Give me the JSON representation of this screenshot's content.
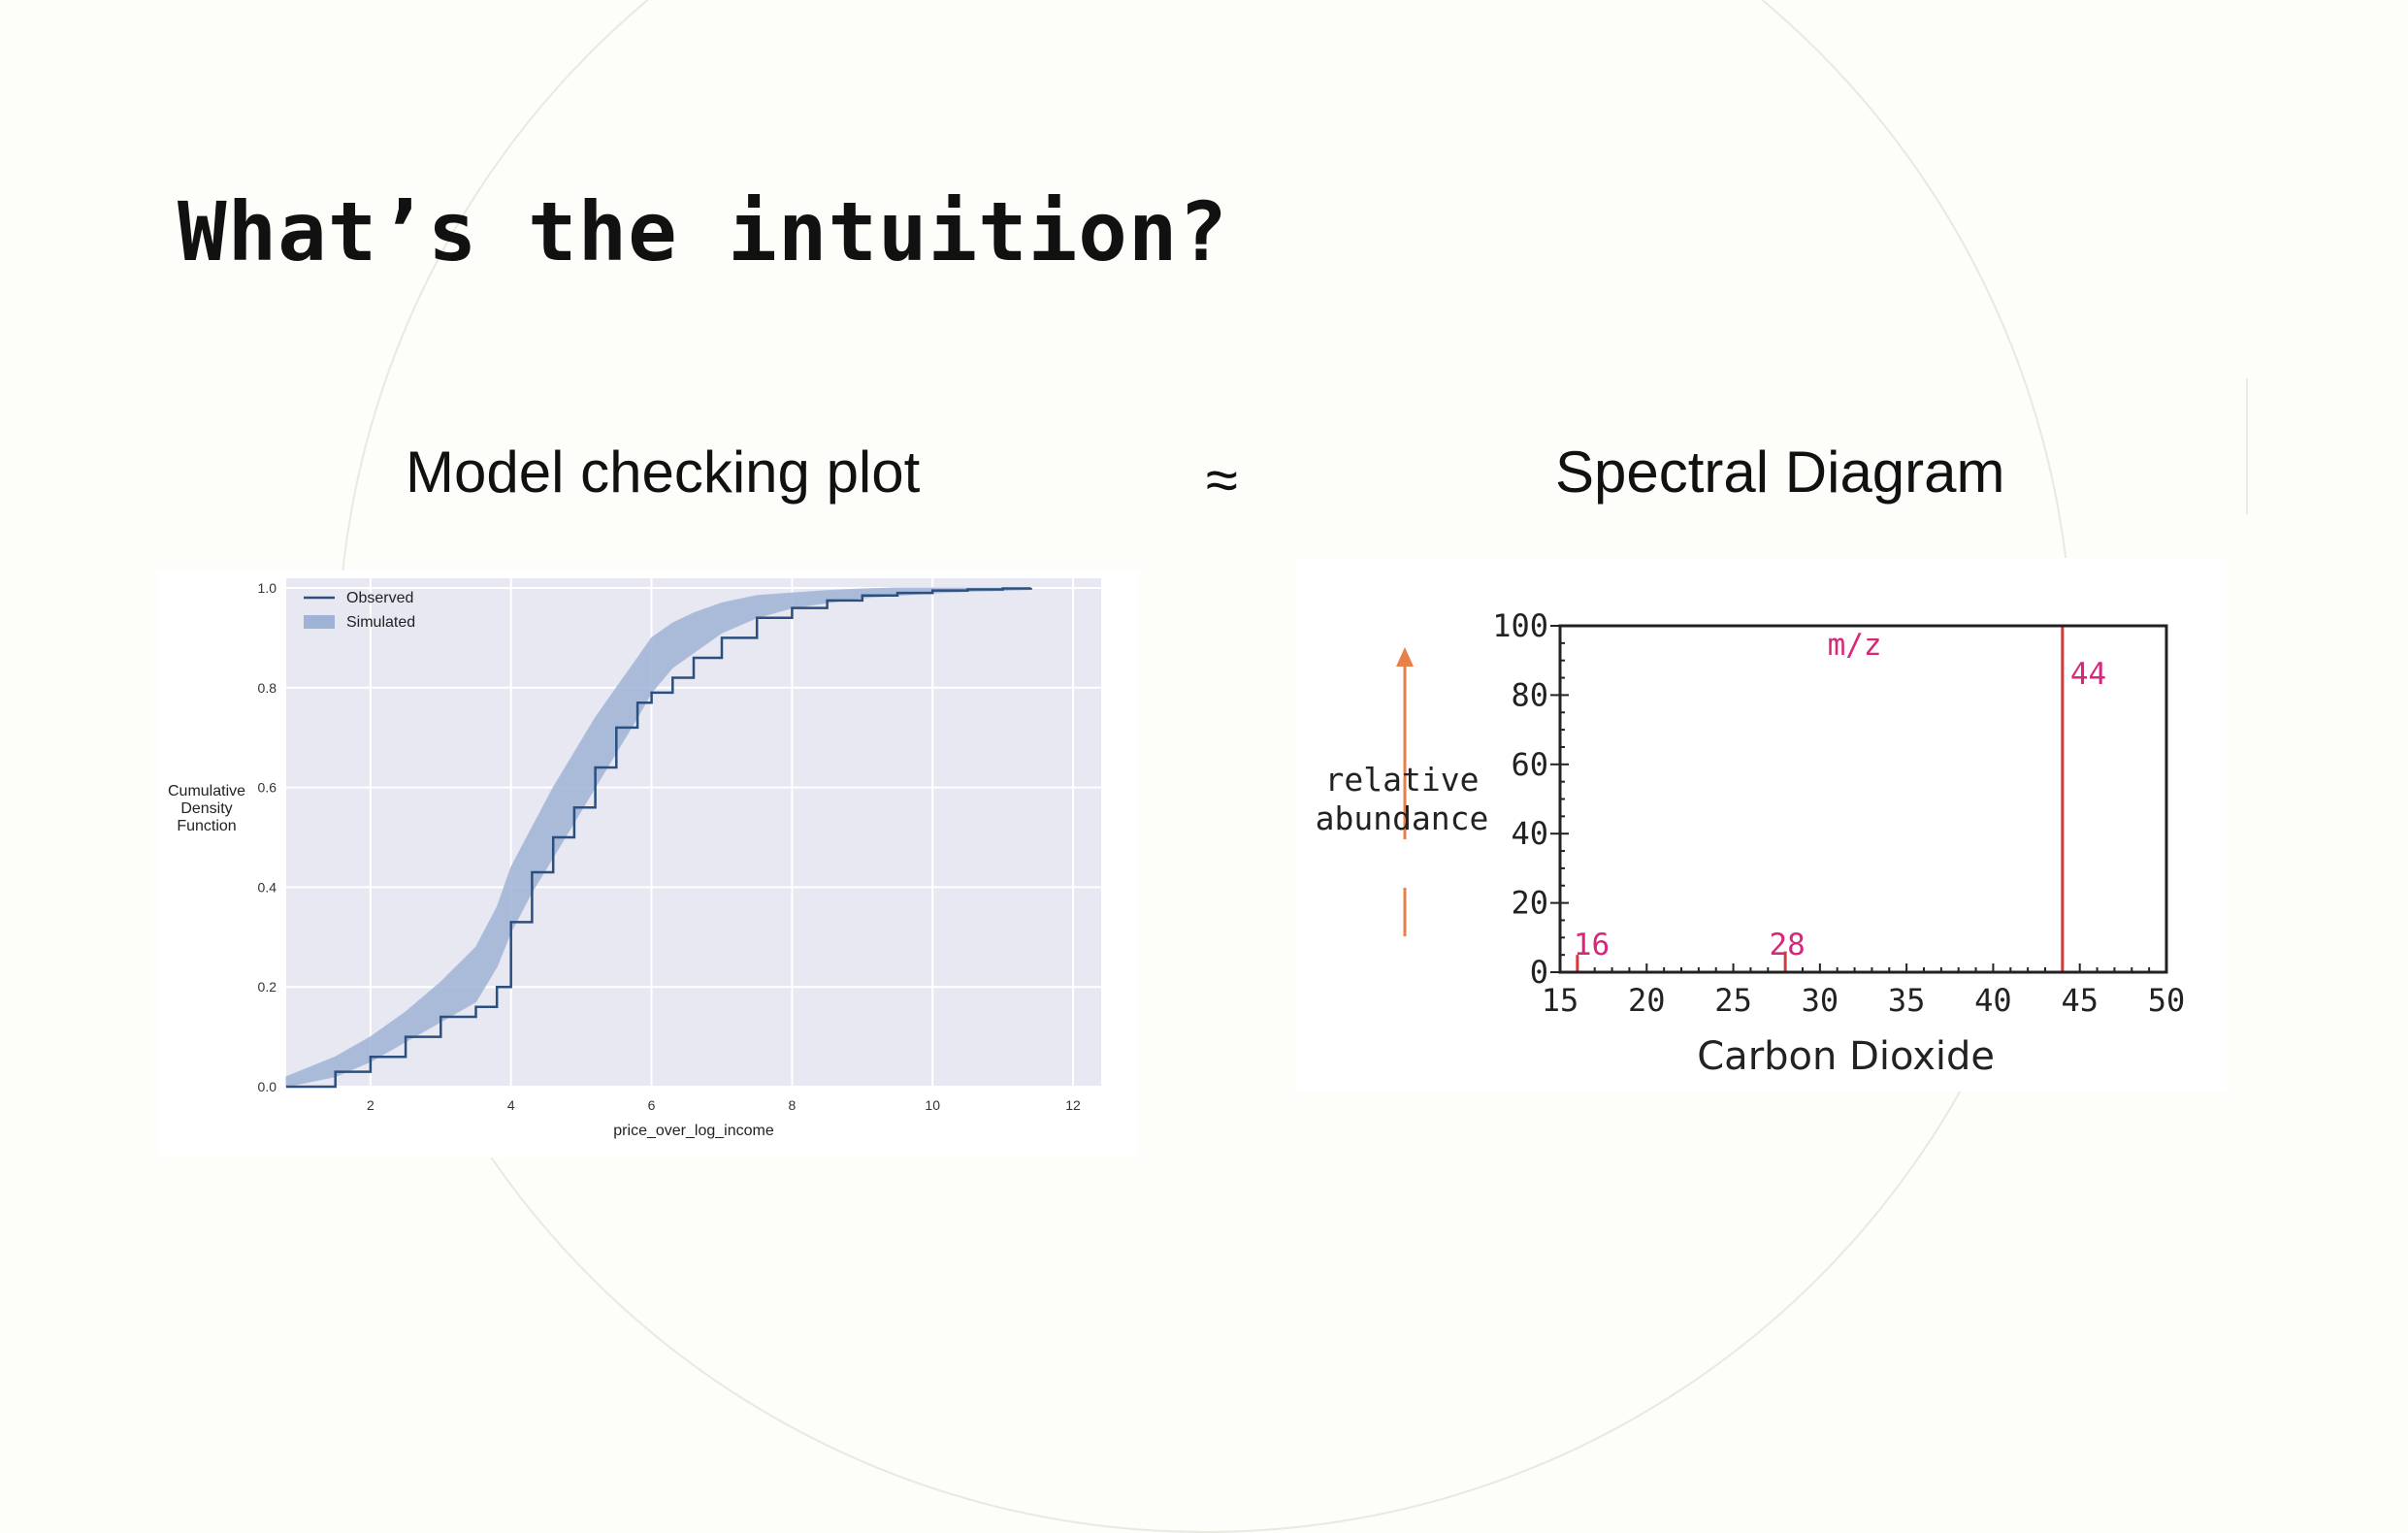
{
  "slide": {
    "title": "What’s the intuition?",
    "left_heading": "Model checking plot",
    "approx_symbol": "≈",
    "right_heading": "Spectral Diagram"
  },
  "chart_data": [
    {
      "type": "line",
      "title": "",
      "xlabel": "price_over_log_income",
      "ylabel_lines": [
        "Cumulative",
        "Density",
        "Function"
      ],
      "xlim": [
        0.8,
        12.4
      ],
      "ylim": [
        0,
        1.0
      ],
      "xticks": [
        2,
        4,
        6,
        8,
        10,
        12
      ],
      "yticks": [
        0.0,
        0.2,
        0.4,
        0.6,
        0.8,
        1.0
      ],
      "grid": true,
      "legend": {
        "placement": "top-left",
        "entries": [
          "Observed",
          "Simulated"
        ]
      },
      "series": [
        {
          "name": "Observed",
          "color": "#2b4f7e",
          "x": [
            0.8,
            1.5,
            2.0,
            2.5,
            3.0,
            3.5,
            3.8,
            4.0,
            4.3,
            4.6,
            4.9,
            5.2,
            5.5,
            5.8,
            6.0,
            6.3,
            6.6,
            7.0,
            7.5,
            8.0,
            8.5,
            9.0,
            9.5,
            10.0,
            10.5,
            11.0,
            11.4
          ],
          "y": [
            0.0,
            0.03,
            0.06,
            0.1,
            0.14,
            0.16,
            0.2,
            0.33,
            0.43,
            0.5,
            0.56,
            0.64,
            0.72,
            0.77,
            0.79,
            0.82,
            0.86,
            0.9,
            0.94,
            0.96,
            0.975,
            0.985,
            0.99,
            0.995,
            0.997,
            0.999,
            1.0
          ]
        },
        {
          "name": "Simulated",
          "color": "#9fb3d6",
          "x": [
            0.8,
            1.5,
            2.0,
            2.5,
            3.0,
            3.5,
            3.8,
            4.0,
            4.3,
            4.6,
            4.9,
            5.2,
            5.5,
            5.8,
            6.0,
            6.3,
            6.6,
            7.0,
            7.5,
            8.0,
            8.5,
            9.0,
            9.5,
            10.0,
            10.5,
            11.0,
            11.4
          ],
          "y_low": [
            0.0,
            0.02,
            0.05,
            0.09,
            0.13,
            0.17,
            0.24,
            0.31,
            0.39,
            0.46,
            0.53,
            0.6,
            0.67,
            0.74,
            0.79,
            0.84,
            0.87,
            0.91,
            0.94,
            0.96,
            0.97,
            0.98,
            0.985,
            0.99,
            0.993,
            0.995,
            0.997
          ],
          "y_high": [
            0.02,
            0.06,
            0.1,
            0.15,
            0.21,
            0.28,
            0.36,
            0.44,
            0.52,
            0.6,
            0.67,
            0.74,
            0.8,
            0.86,
            0.9,
            0.93,
            0.95,
            0.97,
            0.985,
            0.99,
            0.995,
            0.998,
            1.0,
            1.0,
            1.0,
            1.0,
            1.0
          ]
        }
      ]
    },
    {
      "type": "bar",
      "title": "Carbon Dioxide",
      "xlabel": "m/z",
      "ylabel_lines": [
        "relative",
        "abundance"
      ],
      "xlim": [
        15,
        50
      ],
      "ylim": [
        0,
        100
      ],
      "xticks": [
        15,
        20,
        25,
        30,
        35,
        40,
        45,
        50
      ],
      "yticks": [
        0,
        20,
        40,
        60,
        80,
        100
      ],
      "grid": false,
      "peaks": [
        {
          "label": "16",
          "x": 16,
          "y": 5
        },
        {
          "label": "28",
          "x": 28,
          "y": 6
        },
        {
          "label": "44",
          "x": 44,
          "y": 100
        }
      ],
      "colors": {
        "peak": "#d03c3c",
        "peak_label": "#d8277a",
        "arrow": "#e8804a"
      }
    }
  ]
}
